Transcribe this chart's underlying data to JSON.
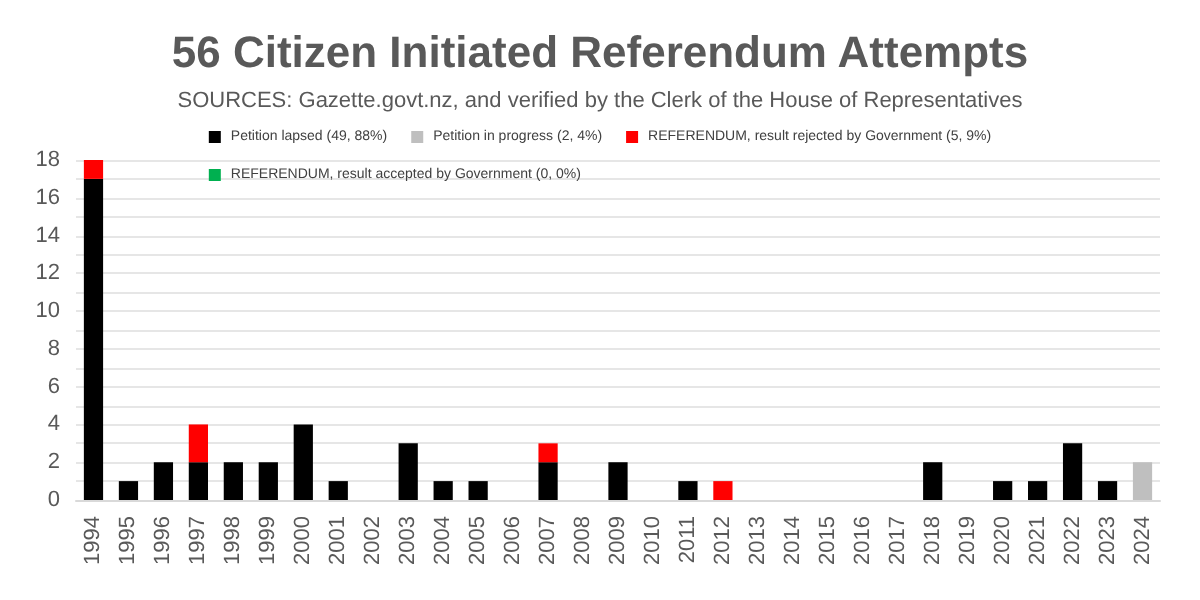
{
  "chart_data": {
    "type": "bar",
    "title": "56 Citizen Initiated Referendum Attempts",
    "subtitle": "SOURCES: Gazette.govt.nz, and verified by the Clerk of the House of Representatives",
    "categories": [
      "1994",
      "1995",
      "1996",
      "1997",
      "1998",
      "1999",
      "2000",
      "2001",
      "2002",
      "2003",
      "2004",
      "2005",
      "2006",
      "2007",
      "2008",
      "2009",
      "2010",
      "2011",
      "2012",
      "2013",
      "2014",
      "2015",
      "2016",
      "2017",
      "2018",
      "2019",
      "2020",
      "2021",
      "2022",
      "2023",
      "2024"
    ],
    "stacked": true,
    "series": [
      {
        "name": "Petition lapsed (49, 88%)",
        "color": "#000000",
        "values": [
          17,
          1,
          2,
          2,
          2,
          2,
          4,
          1,
          0,
          3,
          1,
          1,
          0,
          2,
          0,
          2,
          0,
          1,
          0,
          0,
          0,
          0,
          0,
          0,
          2,
          0,
          1,
          1,
          3,
          1,
          0
        ]
      },
      {
        "name": "Petition in progress (2, 4%)",
        "color": "#bfbfbf",
        "values": [
          0,
          0,
          0,
          0,
          0,
          0,
          0,
          0,
          0,
          0,
          0,
          0,
          0,
          0,
          0,
          0,
          0,
          0,
          0,
          0,
          0,
          0,
          0,
          0,
          0,
          0,
          0,
          0,
          0,
          0,
          2
        ]
      },
      {
        "name": "REFERENDUM, result rejected by Government (5, 9%)",
        "color": "#ff0000",
        "values": [
          1,
          0,
          0,
          2,
          0,
          0,
          0,
          0,
          0,
          0,
          0,
          0,
          0,
          1,
          0,
          0,
          0,
          0,
          1,
          0,
          0,
          0,
          0,
          0,
          0,
          0,
          0,
          0,
          0,
          0,
          0
        ]
      },
      {
        "name": "REFERENDUM, result accepted by Government (0, 0%)",
        "color": "#00b050",
        "values": [
          0,
          0,
          0,
          0,
          0,
          0,
          0,
          0,
          0,
          0,
          0,
          0,
          0,
          0,
          0,
          0,
          0,
          0,
          0,
          0,
          0,
          0,
          0,
          0,
          0,
          0,
          0,
          0,
          0,
          0,
          0
        ]
      }
    ],
    "ylim": [
      0,
      18
    ],
    "yticks": [
      0,
      {
        "value": 1,
        "label": null
      },
      2,
      {
        "value": 3,
        "label": null
      },
      4,
      {
        "value": 5,
        "label": null
      },
      6,
      {
        "value": 7,
        "label": null
      },
      8,
      {
        "value": 9,
        "label": null
      },
      10,
      {
        "value": 11,
        "label": null
      },
      12,
      {
        "value": 13,
        "label": null
      },
      14,
      {
        "value": 15,
        "label": null
      },
      16,
      {
        "value": 17,
        "label": null
      },
      18
    ],
    "grid": "y",
    "legend": "top"
  }
}
